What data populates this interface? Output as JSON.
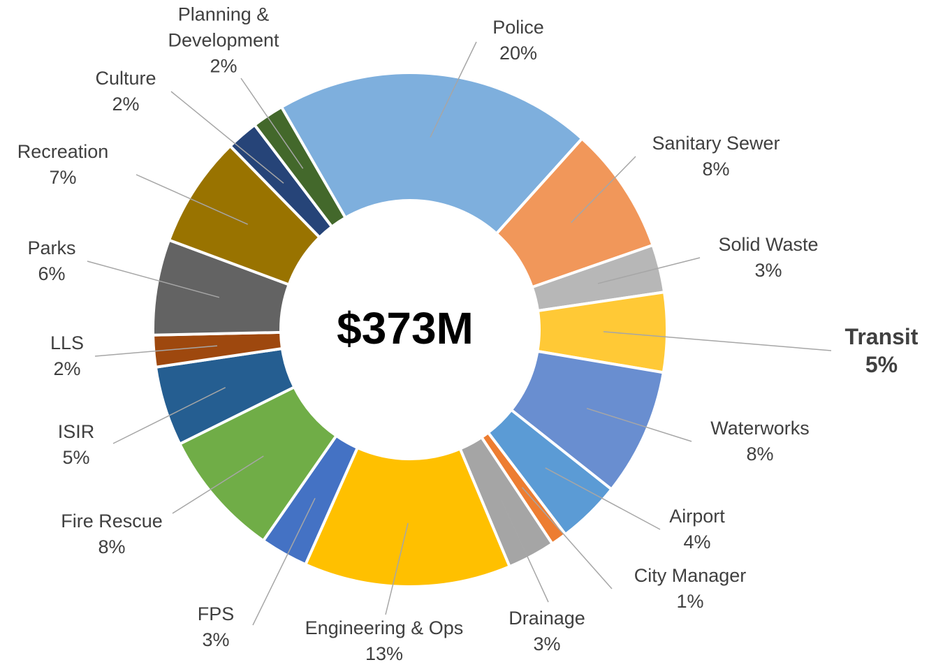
{
  "chart_data": {
    "type": "donut",
    "center_label": "$373M",
    "categories": [
      "Police",
      "Sanitary Sewer",
      "Solid Waste",
      "Transit",
      "Waterworks",
      "Airport",
      "City Manager",
      "Drainage",
      "Engineering & Ops",
      "FPS",
      "Fire Rescue",
      "ISIR",
      "LLS",
      "Parks",
      "Recreation",
      "Culture",
      "Planning & Development"
    ],
    "values": [
      20,
      8,
      3,
      5,
      8,
      4,
      1,
      3,
      13,
      3,
      8,
      5,
      2,
      6,
      7,
      2,
      2
    ],
    "value_labels": [
      "20%",
      "8%",
      "3%",
      "5%",
      "8%",
      "4%",
      "1%",
      "3%",
      "13%",
      "3%",
      "8%",
      "5%",
      "2%",
      "6%",
      "7%",
      "2%",
      "2%"
    ],
    "colors": [
      "#7eafdd",
      "#f1975a",
      "#b7b7b7",
      "#ffc936",
      "#698ed0",
      "#5b9bd5",
      "#ed7d31",
      "#a5a5a5",
      "#ffc000",
      "#4472c4",
      "#70ad47",
      "#255e91",
      "#9e480e",
      "#636363",
      "#997300",
      "#264478",
      "#43682b"
    ],
    "start_angle": -30,
    "highlight_index": 3
  }
}
